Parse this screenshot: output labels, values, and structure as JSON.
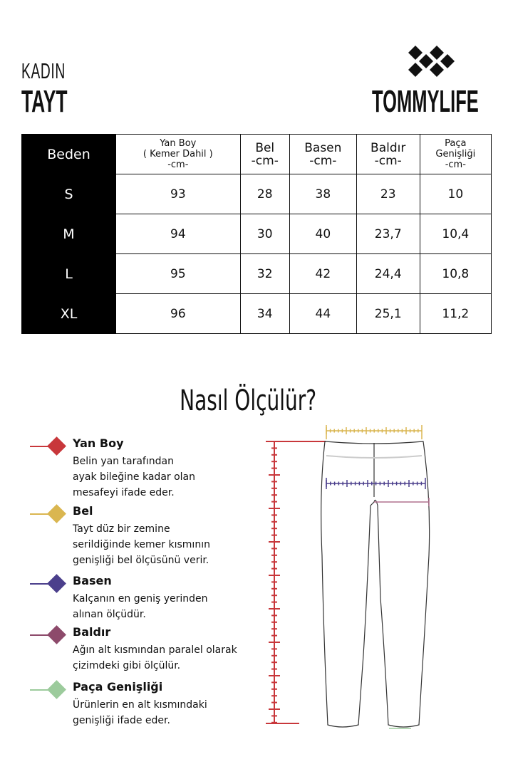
{
  "header": {
    "category": "KADIN",
    "product": "TAYT",
    "brand": "TOMMYLIFE"
  },
  "table": {
    "headers": [
      [
        "Beden"
      ],
      [
        "Yan Boy",
        "( Kemer Dahil )",
        "-cm-"
      ],
      [
        "Bel",
        "-cm-"
      ],
      [
        "Basen",
        "-cm-"
      ],
      [
        "Baldır",
        "-cm-"
      ],
      [
        "Paça",
        "Genişliği",
        "-cm-"
      ]
    ],
    "rows": [
      [
        "S",
        "93",
        "28",
        "38",
        "23",
        "10"
      ],
      [
        "M",
        "94",
        "30",
        "40",
        "23,7",
        "10,4"
      ],
      [
        "L",
        "95",
        "32",
        "42",
        "24,4",
        "10,8"
      ],
      [
        "XL",
        "96",
        "34",
        "44",
        "25,1",
        "11,2"
      ]
    ]
  },
  "guide": {
    "title": "Nasıl Ölçülür?",
    "items": [
      {
        "title": "Yan Boy",
        "lines": [
          "Belin yan tarafından",
          "ayak bileğine kadar olan",
          "mesafeyi ifade eder."
        ],
        "color": "#c8373b"
      },
      {
        "title": "Bel",
        "lines": [
          "Tayt düz bir zemine",
          "serildiğinde kemer kısmının",
          "genişliği bel ölçüsünü verir."
        ],
        "color": "#dab650"
      },
      {
        "title": "Basen",
        "lines": [
          "Kalçanın en geniş yerinden",
          "alınan ölçüdür."
        ],
        "color": "#4b3f8c"
      },
      {
        "title": "Baldır",
        "lines": [
          "Ağın alt kısmından paralel olarak",
          "çizimdeki gibi ölçülür."
        ],
        "color": "#8d4a6b"
      },
      {
        "title": "Paça Genişliği",
        "lines": [
          "Ürünlerin en alt kısmındaki",
          "genişliği ifade eder."
        ],
        "color": "#9ccb9c"
      }
    ]
  }
}
